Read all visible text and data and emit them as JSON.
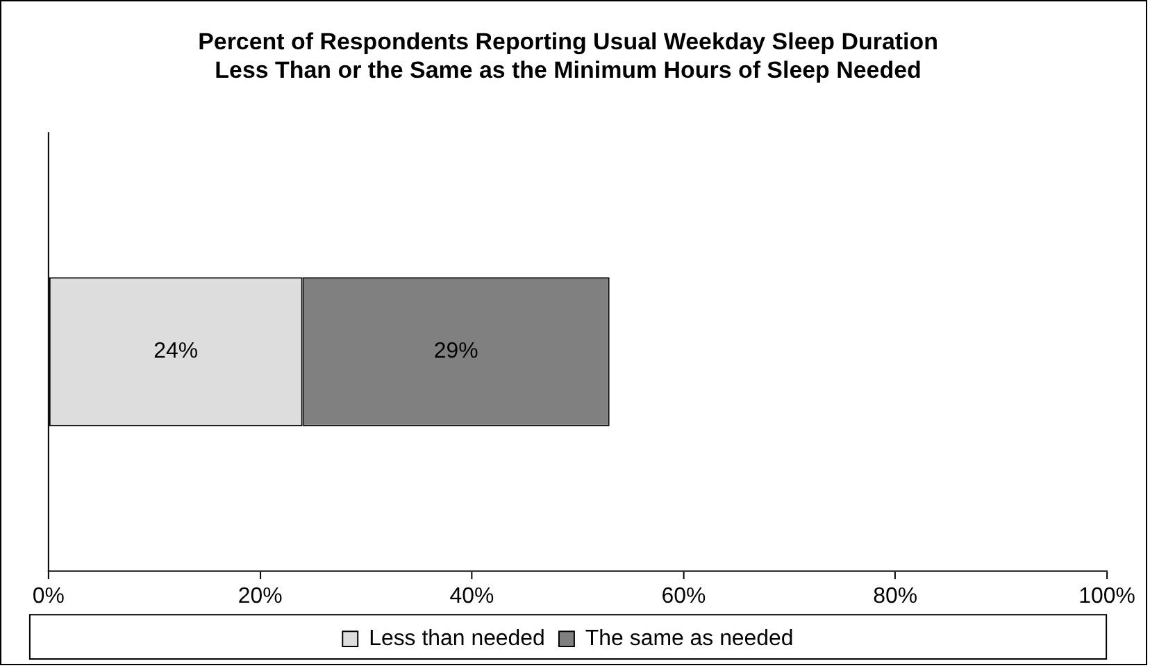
{
  "chart_data": {
    "type": "bar",
    "orientation": "horizontal",
    "stacked": true,
    "title": "Percent of Respondents Reporting Usual Weekday Sleep Duration\nLess Than or the Same as the Minimum Hours of Sleep Needed",
    "categories": [
      null
    ],
    "series": [
      {
        "name": "Less than needed",
        "color": "#dddddd",
        "values": [
          24
        ],
        "value_labels": [
          "24%"
        ]
      },
      {
        "name": "The same as needed",
        "color": "#808080",
        "values": [
          29
        ],
        "value_labels": [
          "29%"
        ]
      }
    ],
    "xlim": [
      0,
      100
    ],
    "xticks": [
      {
        "value": 0,
        "label": "0%"
      },
      {
        "value": 20,
        "label": "20%"
      },
      {
        "value": 40,
        "label": "40%"
      },
      {
        "value": 60,
        "label": "60%"
      },
      {
        "value": 80,
        "label": "80%"
      },
      {
        "value": 100,
        "label": "100%"
      }
    ],
    "legend": "bottom"
  }
}
